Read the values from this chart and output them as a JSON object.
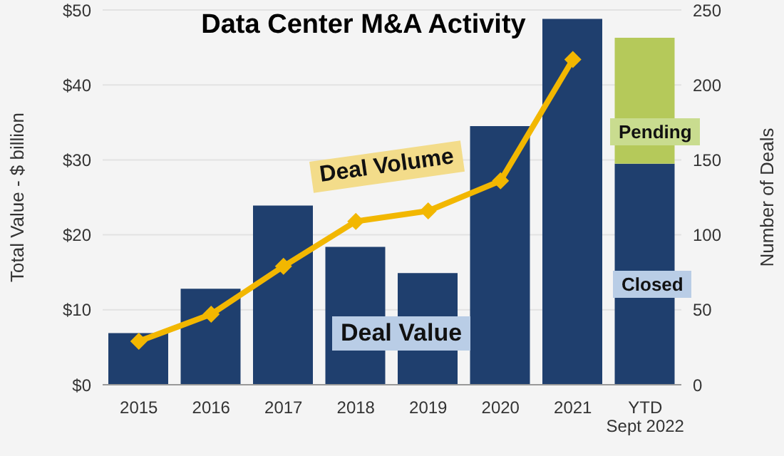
{
  "chart_data": {
    "type": "bar",
    "title": "Data Center M&A Activity",
    "ylabel": "Total Value - $ billion",
    "y2label": "Number of Deals",
    "categories": [
      "2015",
      "2016",
      "2017",
      "2018",
      "2019",
      "2020",
      "2021",
      "YTD Sept 2022"
    ],
    "stacked": true,
    "series": [
      {
        "name": "Deal Value",
        "color": "#1f3f6e",
        "values": [
          6.9,
          12.8,
          23.9,
          18.4,
          14.9,
          34.5,
          48.8,
          29.5
        ]
      },
      {
        "name": "Pending",
        "color": "#b5c95a",
        "values": [
          null,
          null,
          null,
          null,
          null,
          null,
          null,
          16.8
        ]
      },
      {
        "name": "Deal Volume",
        "type": "line",
        "axis": "y2",
        "color": "#f2b700",
        "marker": "diamond",
        "values": [
          29,
          47,
          79,
          109,
          116,
          136,
          217,
          null
        ]
      }
    ],
    "annotations": [
      "Closed"
    ],
    "ylim": [
      0,
      50
    ],
    "yticks": [
      {
        "value": 0,
        "label": "$0"
      },
      {
        "value": 10,
        "label": "$10"
      },
      {
        "value": 20,
        "label": "$20"
      },
      {
        "value": 30,
        "label": "$30"
      },
      {
        "value": 40,
        "label": "$40"
      },
      {
        "value": 50,
        "label": "$50"
      }
    ],
    "y2lim": [
      0,
      250
    ],
    "y2ticks": [
      0,
      50,
      100,
      150,
      200,
      250
    ],
    "grid": "y",
    "legend": false
  }
}
